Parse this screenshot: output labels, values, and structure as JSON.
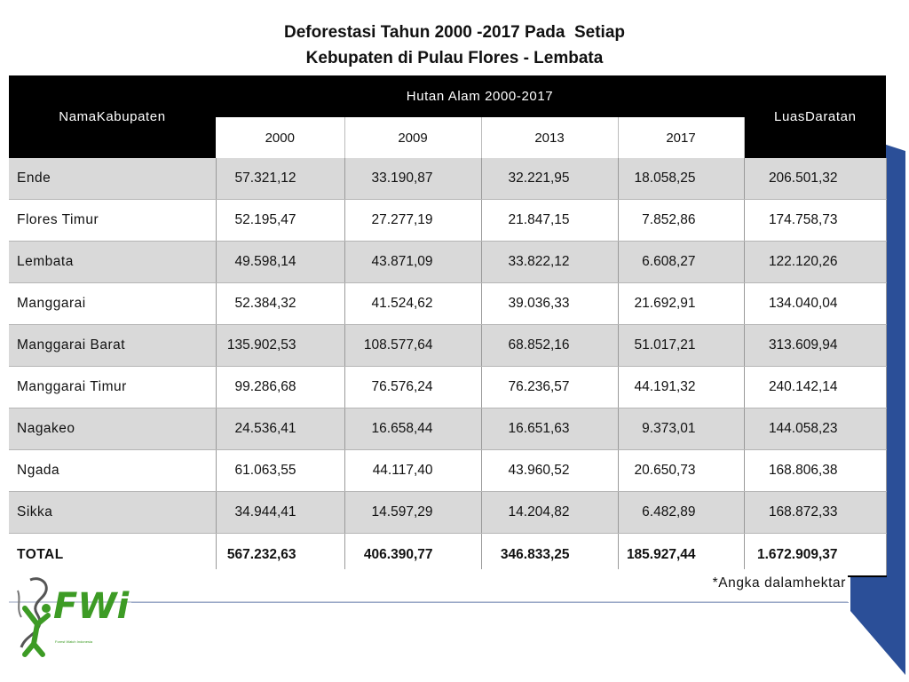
{
  "title": {
    "line1": "Deforestasi Tahun 2000 -2017 Pada  Setiap",
    "line2": "Kebupaten di Pulau Flores - Lembata"
  },
  "colors": {
    "header_bg": "#000000",
    "row_shade": "#d9d9d9",
    "accent_blue": "#2b4f98",
    "logo_green": "#3d9b25"
  },
  "chart_data": {
    "type": "table",
    "headers": {
      "name": "NamaKabupaten",
      "group": "Hutan Alam 2000-2017",
      "years": [
        "2000",
        "2009",
        "2013",
        "2017"
      ],
      "area": "LuasDaratan"
    },
    "rows": [
      {
        "name": "Ende",
        "values": [
          "57.321,12",
          "33.190,87",
          "32.221,95",
          "18.058,25",
          "206.501,32"
        ]
      },
      {
        "name": "Flores Timur",
        "values": [
          "52.195,47",
          "27.277,19",
          "21.847,15",
          "7.852,86",
          "174.758,73"
        ]
      },
      {
        "name": "Lembata",
        "values": [
          "49.598,14",
          "43.871,09",
          "33.822,12",
          "6.608,27",
          "122.120,26"
        ]
      },
      {
        "name": "Manggarai",
        "values": [
          "52.384,32",
          "41.524,62",
          "39.036,33",
          "21.692,91",
          "134.040,04"
        ]
      },
      {
        "name": "Manggarai Barat",
        "values": [
          "135.902,53",
          "108.577,64",
          "68.852,16",
          "51.017,21",
          "313.609,94"
        ]
      },
      {
        "name": "Manggarai Timur",
        "values": [
          "99.286,68",
          "76.576,24",
          "76.236,57",
          "44.191,32",
          "240.142,14"
        ]
      },
      {
        "name": "Nagakeo",
        "values": [
          "24.536,41",
          "16.658,44",
          "16.651,63",
          "9.373,01",
          "144.058,23"
        ]
      },
      {
        "name": "Ngada",
        "values": [
          "61.063,55",
          "44.117,40",
          "43.960,52",
          "20.650,73",
          "168.806,38"
        ]
      },
      {
        "name": "Sikka",
        "values": [
          "34.944,41",
          "14.597,29",
          "14.204,82",
          "6.482,89",
          "168.872,33"
        ]
      }
    ],
    "total": {
      "name": "TOTAL",
      "values": [
        "567.232,63",
        "406.390,77",
        "346.833,25",
        "185.927,44",
        "1.672.909,37"
      ]
    }
  },
  "note": "*Angka dalamhektar",
  "logo": {
    "text": "FWi",
    "subtitle": "Forest Watch Indonesia"
  }
}
